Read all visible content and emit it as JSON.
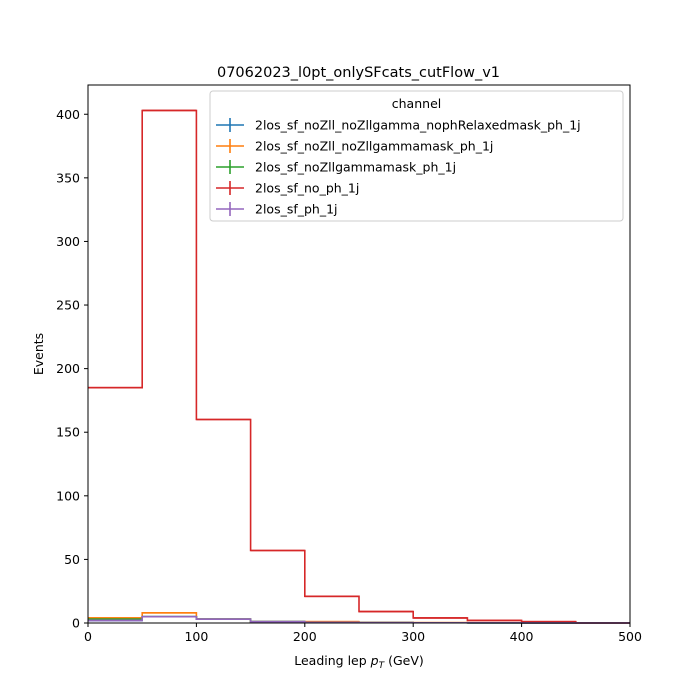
{
  "chart_data": {
    "type": "histogram-step",
    "title": "07062023_l0pt_onlySFcats_cutFlow_v1",
    "xlabel_main": "Leading lep ",
    "xlabel_math_base": "p",
    "xlabel_math_sub": "T",
    "xlabel_unit": " (GeV)",
    "ylabel": "Events",
    "xlim": [
      0,
      500
    ],
    "ylim": [
      0,
      423
    ],
    "xticks": [
      0,
      100,
      200,
      300,
      400,
      500
    ],
    "yticks": [
      0,
      50,
      100,
      150,
      200,
      250,
      300,
      350,
      400
    ],
    "bin_edges": [
      0,
      50,
      100,
      150,
      200,
      250,
      300,
      350,
      400,
      450,
      500
    ],
    "legend": {
      "title": "channel",
      "placement": "top-right"
    },
    "series": [
      {
        "name": "2los_sf_noZll_noZllgamma_nophRelaxedmask_ph_1j",
        "color": "#1f77b4",
        "values": [
          2,
          5,
          3,
          1,
          0.5,
          0.3,
          0.2,
          0.1,
          0.05,
          0
        ]
      },
      {
        "name": "2los_sf_noZll_noZllgammamask_ph_1j",
        "color": "#ff7f0e",
        "values": [
          4,
          8,
          3,
          1,
          1,
          0.5,
          0.3,
          0.2,
          0.1,
          0
        ]
      },
      {
        "name": "2los_sf_noZllgammamask_ph_1j",
        "color": "#2ca02c",
        "values": [
          3,
          5,
          3,
          1,
          0.5,
          0.3,
          0.2,
          0.1,
          0.05,
          0
        ]
      },
      {
        "name": "2los_sf_no_ph_1j",
        "color": "#d62728",
        "values": [
          185,
          403,
          160,
          57,
          21,
          9,
          4,
          2,
          1,
          0
        ]
      },
      {
        "name": "2los_sf_ph_1j",
        "color": "#9467bd",
        "values": [
          2,
          5,
          3,
          1,
          0.5,
          0.3,
          0.2,
          0.1,
          0.05,
          0
        ]
      }
    ]
  }
}
